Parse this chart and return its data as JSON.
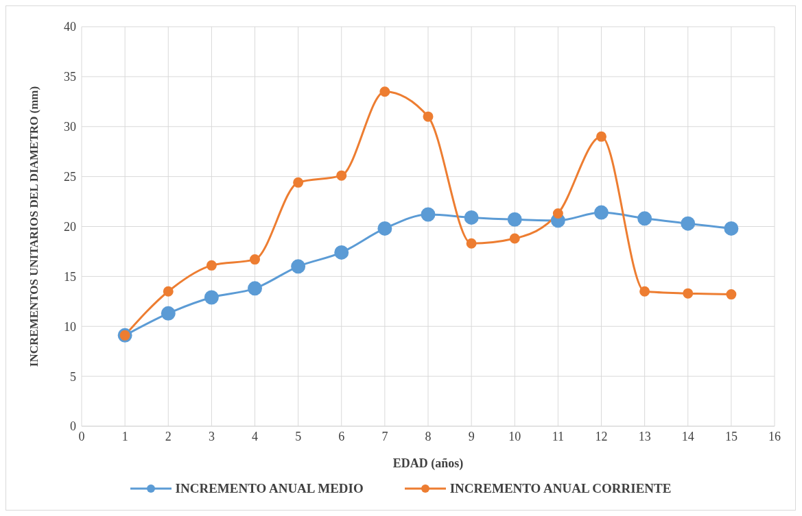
{
  "chart_data": {
    "type": "line",
    "xlabel": "EDAD (años)",
    "ylabel": "INCREMENTOS UNITARIOS DEL DIAMETRO (mm)",
    "x": [
      1,
      2,
      3,
      4,
      5,
      6,
      7,
      8,
      9,
      10,
      11,
      12,
      13,
      14,
      15
    ],
    "series": [
      {
        "name": "INCREMENTO ANUAL MEDIO",
        "color": "#5b9bd5",
        "values": [
          9.1,
          11.3,
          12.9,
          13.8,
          16.0,
          17.4,
          19.8,
          21.2,
          20.9,
          20.7,
          20.6,
          21.4,
          20.8,
          20.3,
          19.8
        ]
      },
      {
        "name": "INCREMENTO ANUAL CORRIENTE",
        "color": "#ed7d31",
        "values": [
          9.1,
          13.5,
          16.1,
          16.7,
          24.4,
          25.1,
          33.5,
          31.0,
          18.3,
          18.8,
          21.3,
          29.0,
          13.5,
          13.3,
          13.2
        ]
      }
    ],
    "xlim": [
      0,
      16
    ],
    "xticks": [
      0,
      1,
      2,
      3,
      4,
      5,
      6,
      7,
      8,
      9,
      10,
      11,
      12,
      13,
      14,
      15,
      16
    ],
    "ylim": [
      0,
      40
    ],
    "yticks": [
      0,
      5,
      10,
      15,
      20,
      25,
      30,
      35,
      40
    ],
    "grid": true,
    "legend": "bottom",
    "marker": "circle",
    "line_style": "solid"
  }
}
